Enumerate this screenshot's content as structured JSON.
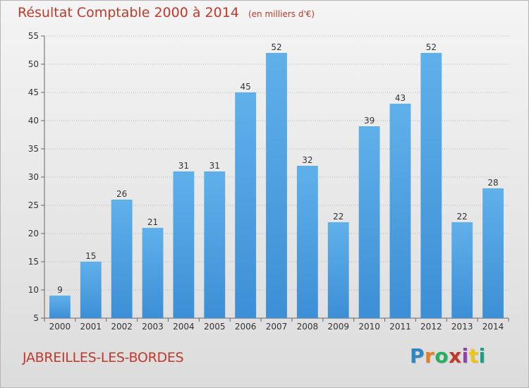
{
  "header": {
    "title": "Résultat Comptable 2000 à 2014",
    "unit": "(en milliers d'€)"
  },
  "footer": {
    "commune": "JABREILLES-LES-BORDES",
    "logo": {
      "letters": [
        "P",
        "r",
        "o",
        "x",
        "i",
        "t",
        "i"
      ],
      "colors": [
        "#2e86c1",
        "#e67e22",
        "#27ae60",
        "#c0392b",
        "#8e44ad",
        "#f1c40f",
        "#16a085"
      ]
    }
  },
  "colors": {
    "bar": "#3d8fd6",
    "bar_highlight": "#5fb0ea",
    "title": "#c0392b",
    "grid": "#b8b8b8"
  },
  "chart_data": {
    "type": "bar",
    "title": "Résultat Comptable 2000 à 2014",
    "subtitle": "(en milliers d'€)",
    "xlabel": "",
    "ylabel": "",
    "categories": [
      "2000",
      "2001",
      "2002",
      "2003",
      "2004",
      "2005",
      "2006",
      "2007",
      "2008",
      "2009",
      "2010",
      "2011",
      "2012",
      "2013",
      "2014"
    ],
    "values": [
      9,
      15,
      26,
      21,
      31,
      31,
      45,
      52,
      32,
      22,
      39,
      43,
      52,
      22,
      28
    ],
    "ylim": [
      5,
      55
    ],
    "yticks": [
      5,
      10,
      15,
      20,
      25,
      30,
      35,
      40,
      45,
      50,
      55
    ],
    "grid": true,
    "data_labels": true
  }
}
